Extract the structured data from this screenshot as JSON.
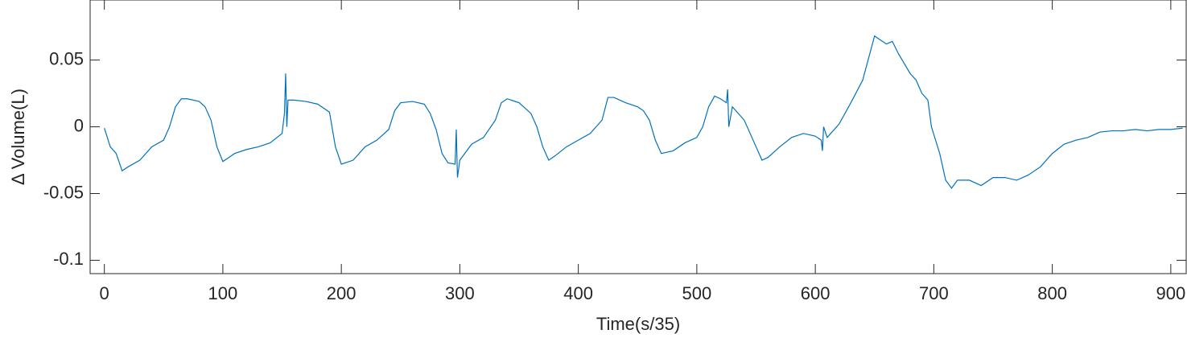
{
  "chart_data": {
    "type": "line",
    "x_label": "Time(s/35)",
    "y_label": "Δ Volume(L)",
    "xlim": [
      -12,
      913
    ],
    "ylim": [
      -0.11,
      0.095
    ],
    "xticks": [
      0,
      100,
      200,
      300,
      400,
      500,
      600,
      700,
      800,
      900
    ],
    "yticks": [
      -0.1,
      -0.05,
      0,
      0.05
    ],
    "series": [
      {
        "color": "#0072BD",
        "x": [
          0,
          5,
          10,
          15,
          20,
          30,
          40,
          50,
          55,
          60,
          65,
          70,
          80,
          85,
          90,
          95,
          100,
          105,
          110,
          120,
          130,
          140,
          150,
          152,
          153,
          154,
          155,
          160,
          170,
          180,
          190,
          195,
          200,
          210,
          220,
          230,
          240,
          245,
          250,
          260,
          270,
          275,
          280,
          285,
          290,
          296,
          297,
          298,
          300,
          310,
          320,
          330,
          335,
          340,
          350,
          360,
          365,
          370,
          375,
          380,
          390,
          400,
          410,
          420,
          425,
          430,
          440,
          450,
          455,
          460,
          465,
          470,
          480,
          490,
          500,
          505,
          510,
          515,
          520,
          525,
          526,
          527,
          530,
          540,
          550,
          555,
          560,
          570,
          580,
          590,
          600,
          605,
          606,
          607,
          610,
          620,
          630,
          640,
          650,
          660,
          665,
          670,
          680,
          685,
          690,
          695,
          698,
          705,
          710,
          715,
          720,
          730,
          740,
          750,
          760,
          770,
          780,
          790,
          800,
          810,
          820,
          830,
          840,
          850,
          860,
          870,
          880,
          890,
          900,
          910
        ],
        "values": [
          -0.001,
          -0.015,
          -0.02,
          -0.033,
          -0.03,
          -0.025,
          -0.015,
          -0.01,
          0.0,
          0.015,
          0.021,
          0.021,
          0.019,
          0.015,
          0.005,
          -0.015,
          -0.026,
          -0.023,
          -0.02,
          -0.017,
          -0.015,
          -0.012,
          -0.005,
          0.01,
          0.04,
          0.0,
          0.02,
          0.02,
          0.019,
          0.017,
          0.011,
          -0.015,
          -0.028,
          -0.025,
          -0.015,
          -0.01,
          -0.002,
          0.012,
          0.018,
          0.019,
          0.017,
          0.01,
          -0.002,
          -0.02,
          -0.027,
          -0.028,
          -0.002,
          -0.038,
          -0.025,
          -0.013,
          -0.008,
          0.005,
          0.018,
          0.021,
          0.018,
          0.01,
          0.0,
          -0.015,
          -0.025,
          -0.022,
          -0.015,
          -0.01,
          -0.005,
          0.005,
          0.022,
          0.022,
          0.018,
          0.015,
          0.012,
          0.005,
          -0.01,
          -0.02,
          -0.018,
          -0.012,
          -0.008,
          0.0,
          0.015,
          0.023,
          0.021,
          0.018,
          0.028,
          0.0,
          0.015,
          0.005,
          -0.015,
          -0.025,
          -0.023,
          -0.015,
          -0.008,
          -0.005,
          -0.007,
          -0.01,
          -0.018,
          0.0,
          -0.008,
          0.002,
          0.018,
          0.035,
          0.068,
          0.062,
          0.064,
          0.055,
          0.04,
          0.035,
          0.025,
          0.02,
          0.0,
          -0.02,
          -0.04,
          -0.046,
          -0.04,
          -0.04,
          -0.044,
          -0.038,
          -0.038,
          -0.04,
          -0.036,
          -0.03,
          -0.02,
          -0.013,
          -0.01,
          -0.008,
          -0.004,
          -0.003,
          -0.003,
          -0.002,
          -0.003,
          -0.002,
          -0.002,
          -0.001
        ]
      }
    ]
  }
}
